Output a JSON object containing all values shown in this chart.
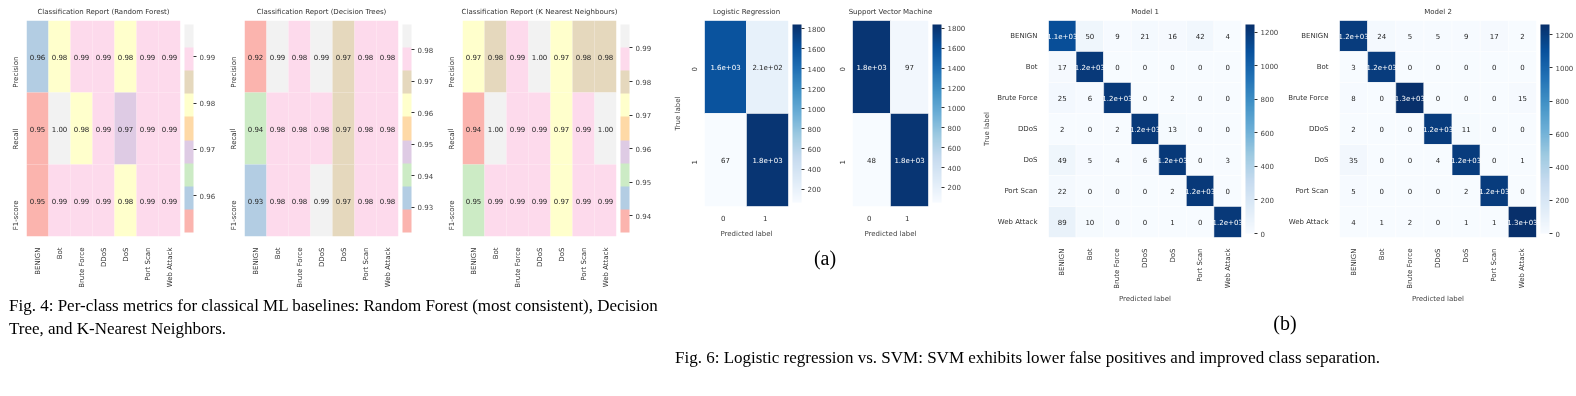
{
  "chart_data": [
    {
      "type": "heatmap",
      "title": "Classification Report (Random Forest)",
      "categories": [
        "BENIGN",
        "Bot",
        "Brute Force",
        "DDoS",
        "DoS",
        "Port Scan",
        "Web Attack"
      ],
      "y_categories": [
        "Precision",
        "Recall",
        "F1-score"
      ],
      "cells": [
        [
          0.96,
          0.98,
          0.99,
          0.99,
          0.98,
          0.99,
          0.99
        ],
        [
          0.95,
          1.0,
          0.98,
          0.99,
          0.97,
          0.99,
          0.99
        ],
        [
          0.95,
          0.99,
          0.99,
          0.99,
          0.98,
          0.99,
          0.99
        ]
      ],
      "cell_labels": [
        [
          "0.96",
          "0.98",
          "0.99",
          "0.99",
          "0.98",
          "0.99",
          "0.99"
        ],
        [
          "0.95",
          "1.00",
          "0.98",
          "0.99",
          "0.97",
          "0.99",
          "0.99"
        ],
        [
          "0.95",
          "0.99",
          "0.99",
          "0.99",
          "0.98",
          "0.99",
          "0.99"
        ]
      ],
      "clim": [
        0.952,
        0.997
      ],
      "cticks": [
        0.96,
        0.97,
        0.98,
        0.99
      ],
      "annotations": [
        "Fig. 4: Per-class metrics for classical ML baselines: Random Forest (most consistent), Decision Tree, and K-Nearest Neighbors."
      ]
    },
    {
      "type": "heatmap",
      "title": "Classification Report (Decision Trees)",
      "categories": [
        "BENIGN",
        "Bot",
        "Brute Force",
        "DDoS",
        "DoS",
        "Port Scan",
        "Web Attack"
      ],
      "y_categories": [
        "Precision",
        "Recall",
        "F1-score"
      ],
      "cells": [
        [
          0.92,
          0.99,
          0.98,
          0.99,
          0.97,
          0.98,
          0.98
        ],
        [
          0.94,
          0.98,
          0.98,
          0.98,
          0.97,
          0.98,
          0.98
        ],
        [
          0.93,
          0.98,
          0.98,
          0.99,
          0.97,
          0.98,
          0.98
        ]
      ],
      "cell_labels": [
        [
          "0.92",
          "0.99",
          "0.98",
          "0.99",
          "0.97",
          "0.98",
          "0.98"
        ],
        [
          "0.94",
          "0.98",
          "0.98",
          "0.98",
          "0.97",
          "0.98",
          "0.98"
        ],
        [
          "0.93",
          "0.98",
          "0.98",
          "0.99",
          "0.97",
          "0.98",
          "0.98"
        ]
      ],
      "clim": [
        0.922,
        0.988
      ],
      "cticks": [
        0.93,
        0.94,
        0.95,
        0.96,
        0.97,
        0.98
      ]
    },
    {
      "type": "heatmap",
      "title": "Classification Report (K Nearest Neighbours)",
      "categories": [
        "BENIGN",
        "Bot",
        "Brute Force",
        "DDoS",
        "DoS",
        "Port Scan",
        "Web Attack"
      ],
      "y_categories": [
        "Precision",
        "Recall",
        "F1-score"
      ],
      "cells": [
        [
          0.97,
          0.98,
          0.99,
          1.0,
          0.97,
          0.98,
          0.98
        ],
        [
          0.94,
          1.0,
          0.99,
          0.99,
          0.97,
          0.99,
          1.0
        ],
        [
          0.95,
          0.99,
          0.99,
          0.99,
          0.97,
          0.99,
          0.99
        ]
      ],
      "cell_labels": [
        [
          "0.97",
          "0.98",
          "0.99",
          "1.00",
          "0.97",
          "0.98",
          "0.98"
        ],
        [
          "0.94",
          "1.00",
          "0.99",
          "0.99",
          "0.97",
          "0.99",
          "1.00"
        ],
        [
          "0.95",
          "0.99",
          "0.99",
          "0.99",
          "0.97",
          "0.99",
          "0.99"
        ]
      ],
      "clim": [
        0.935,
        0.997
      ],
      "cticks": [
        0.94,
        0.95,
        0.96,
        0.97,
        0.98,
        0.99
      ]
    },
    {
      "type": "heatmap",
      "title": "Logistic Regression",
      "categories": [
        "0",
        "1"
      ],
      "y_categories": [
        "0",
        "1"
      ],
      "xlabel": "Predicted label",
      "ylabel": "True label",
      "cells": [
        [
          1600,
          210
        ],
        [
          67,
          1800
        ]
      ],
      "cell_labels": [
        [
          "1.6e+03",
          "2.1e+02"
        ],
        [
          "67",
          "1.8e+03"
        ]
      ],
      "clim": [
        67,
        1840
      ],
      "cticks": [
        200,
        400,
        600,
        800,
        1000,
        1200,
        1400,
        1600,
        1800
      ],
      "annotations": [
        "(a)"
      ]
    },
    {
      "type": "heatmap",
      "title": "Support Vector Machine",
      "categories": [
        "0",
        "1"
      ],
      "y_categories": [
        "0",
        "1"
      ],
      "xlabel": "Predicted label",
      "cells": [
        [
          1800,
          97
        ],
        [
          48,
          1800
        ]
      ],
      "cell_labels": [
        [
          "1.8e+03",
          "97"
        ],
        [
          "48",
          "1.8e+03"
        ]
      ],
      "clim": [
        48,
        1840
      ],
      "cticks": [
        200,
        400,
        600,
        800,
        1000,
        1200,
        1400,
        1600,
        1800
      ],
      "annotations": [
        "Fig. 6: Logistic regression vs. SVM: SVM exhibits lower false positives and improved class separation."
      ]
    },
    {
      "type": "heatmap",
      "title": "Model 1",
      "categories": [
        "BENIGN",
        "Bot",
        "Brute Force",
        "DDoS",
        "DoS",
        "Port Scan",
        "Web Attack"
      ],
      "y_categories": [
        "BENIGN",
        "Bot",
        "Brute Force",
        "DDoS",
        "DoS",
        "Port Scan",
        "Web Attack"
      ],
      "xlabel": "Predicted label",
      "ylabel": "True label",
      "cells": [
        [
          1100,
          50,
          9,
          21,
          16,
          42,
          4
        ],
        [
          17,
          1200,
          0,
          0,
          0,
          0,
          0
        ],
        [
          25,
          6,
          1200,
          0,
          2,
          0,
          0
        ],
        [
          2,
          0,
          2,
          1200,
          13,
          0,
          0
        ],
        [
          49,
          5,
          4,
          6,
          1200,
          0,
          3
        ],
        [
          22,
          0,
          0,
          0,
          2,
          1200,
          0
        ],
        [
          89,
          10,
          0,
          0,
          1,
          0,
          1200
        ]
      ],
      "cell_labels": [
        [
          "1.1e+03",
          "50",
          "9",
          "21",
          "16",
          "42",
          "4"
        ],
        [
          "17",
          "1.2e+03",
          "0",
          "0",
          "0",
          "0",
          "0"
        ],
        [
          "25",
          "6",
          "1.2e+03",
          "0",
          "2",
          "0",
          "0"
        ],
        [
          "2",
          "0",
          "2",
          "1.2e+03",
          "13",
          "0",
          "0"
        ],
        [
          "49",
          "5",
          "4",
          "6",
          "1.2e+03",
          "0",
          "3"
        ],
        [
          "22",
          "0",
          "0",
          "0",
          "2",
          "1.2e+03",
          "0"
        ],
        [
          "89",
          "10",
          "0",
          "0",
          "1",
          "0",
          "1.2e+03"
        ]
      ],
      "clim": [
        0,
        1245
      ],
      "cticks": [
        0,
        200,
        400,
        600,
        800,
        1000,
        1200
      ],
      "annotations": [
        "(b)"
      ]
    },
    {
      "type": "heatmap",
      "title": "Model 2",
      "categories": [
        "BENIGN",
        "Bot",
        "Brute Force",
        "DDoS",
        "DoS",
        "Port Scan",
        "Web Attack"
      ],
      "y_categories": [
        "BENIGN",
        "Bot",
        "Brute Force",
        "DDoS",
        "DoS",
        "Port Scan",
        "Web Attack"
      ],
      "xlabel": "Predicted label",
      "cells": [
        [
          1200,
          24,
          5,
          5,
          9,
          17,
          2
        ],
        [
          3,
          1200,
          0,
          0,
          0,
          0,
          0
        ],
        [
          8,
          0,
          1300,
          0,
          0,
          0,
          15
        ],
        [
          2,
          0,
          0,
          1200,
          11,
          0,
          0
        ],
        [
          35,
          0,
          0,
          4,
          1200,
          0,
          1
        ],
        [
          5,
          0,
          0,
          0,
          2,
          1200,
          0
        ],
        [
          4,
          1,
          2,
          0,
          1,
          1,
          1300
        ]
      ],
      "cell_labels": [
        [
          "1.2e+03",
          "24",
          "5",
          "5",
          "9",
          "17",
          "2"
        ],
        [
          "3",
          "1.2e+03",
          "0",
          "0",
          "0",
          "0",
          "0"
        ],
        [
          "8",
          "0",
          "1.3e+03",
          "0",
          "0",
          "0",
          "15"
        ],
        [
          "2",
          "0",
          "0",
          "1.2e+03",
          "11",
          "0",
          "0"
        ],
        [
          "35",
          "0",
          "0",
          "4",
          "1.2e+03",
          "0",
          "1"
        ],
        [
          "5",
          "0",
          "0",
          "0",
          "2",
          "1.2e+03",
          "0"
        ],
        [
          "4",
          "1",
          "2",
          "0",
          "1",
          "1",
          "1.3e+03"
        ]
      ],
      "clim": [
        0,
        1262
      ],
      "cticks": [
        0,
        200,
        400,
        600,
        800,
        1000,
        1200
      ]
    }
  ]
}
